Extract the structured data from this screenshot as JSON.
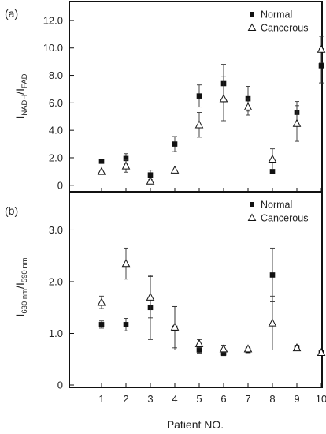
{
  "figure": {
    "xlabel": "Patient NO.",
    "x_ticks": [
      "1",
      "2",
      "3",
      "4",
      "5",
      "6",
      "7",
      "8",
      "9",
      "10"
    ]
  },
  "chart_data": [
    {
      "type": "scatter",
      "panel_label": "(a)",
      "ylabel": {
        "base": "I",
        "sub1": "NADH",
        "slash": "/I",
        "sub2": "FAD"
      },
      "x": [
        1,
        2,
        3,
        4,
        5,
        6,
        7,
        8,
        9,
        10
      ],
      "ylim": [
        -0.3,
        12.8
      ],
      "y_ticks": [
        "0",
        "2.0",
        "4.0",
        "6.0",
        "8.0",
        "10.0",
        "12.0"
      ],
      "legend": {
        "position": "top-right"
      },
      "series": [
        {
          "name": "Normal",
          "marker": "square",
          "values": [
            1.75,
            1.95,
            0.75,
            3.0,
            6.5,
            7.4,
            6.3,
            1.0,
            5.3,
            8.7
          ],
          "errors": [
            0.15,
            0.35,
            0.35,
            0.55,
            0.8,
            1.4,
            0.9,
            0.0,
            0.8,
            1.25
          ]
        },
        {
          "name": "Cancerous",
          "marker": "triangle",
          "values": [
            1.0,
            1.4,
            0.3,
            1.1,
            4.4,
            6.3,
            5.7,
            1.9,
            4.5,
            9.9
          ],
          "errors": [
            0.0,
            0.45,
            0.0,
            0.0,
            0.9,
            1.6,
            0.6,
            0.75,
            1.3,
            0.95
          ]
        }
      ]
    },
    {
      "type": "scatter",
      "panel_label": "(b)",
      "ylabel": {
        "base": "I",
        "sub1": "630 nm",
        "slash": "/I",
        "sub2": "590 nm"
      },
      "x": [
        1,
        2,
        3,
        4,
        5,
        6,
        7,
        8,
        9,
        10
      ],
      "ylim": [
        0,
        3.45
      ],
      "y_ticks": [
        "0",
        "1.0",
        "2.0",
        "3.0"
      ],
      "legend": {
        "position": "top-right"
      },
      "series": [
        {
          "name": "Normal",
          "marker": "square",
          "values": [
            1.17,
            1.17,
            1.5,
            1.1,
            0.68,
            0.62,
            0.67,
            2.13,
            0.72,
            0.62
          ],
          "errors": [
            0.07,
            0.12,
            0.62,
            0.42,
            0.06,
            0.05,
            0.03,
            0.52,
            0.05,
            0.04
          ]
        },
        {
          "name": "Cancerous",
          "marker": "triangle",
          "values": [
            1.6,
            2.35,
            1.7,
            1.12,
            0.8,
            0.7,
            0.7,
            1.2,
            0.72,
            0.63
          ],
          "errors": [
            0.12,
            0.3,
            0.4,
            0.4,
            0.08,
            0.07,
            0.03,
            0.52,
            0.05,
            0.04
          ]
        }
      ]
    }
  ]
}
